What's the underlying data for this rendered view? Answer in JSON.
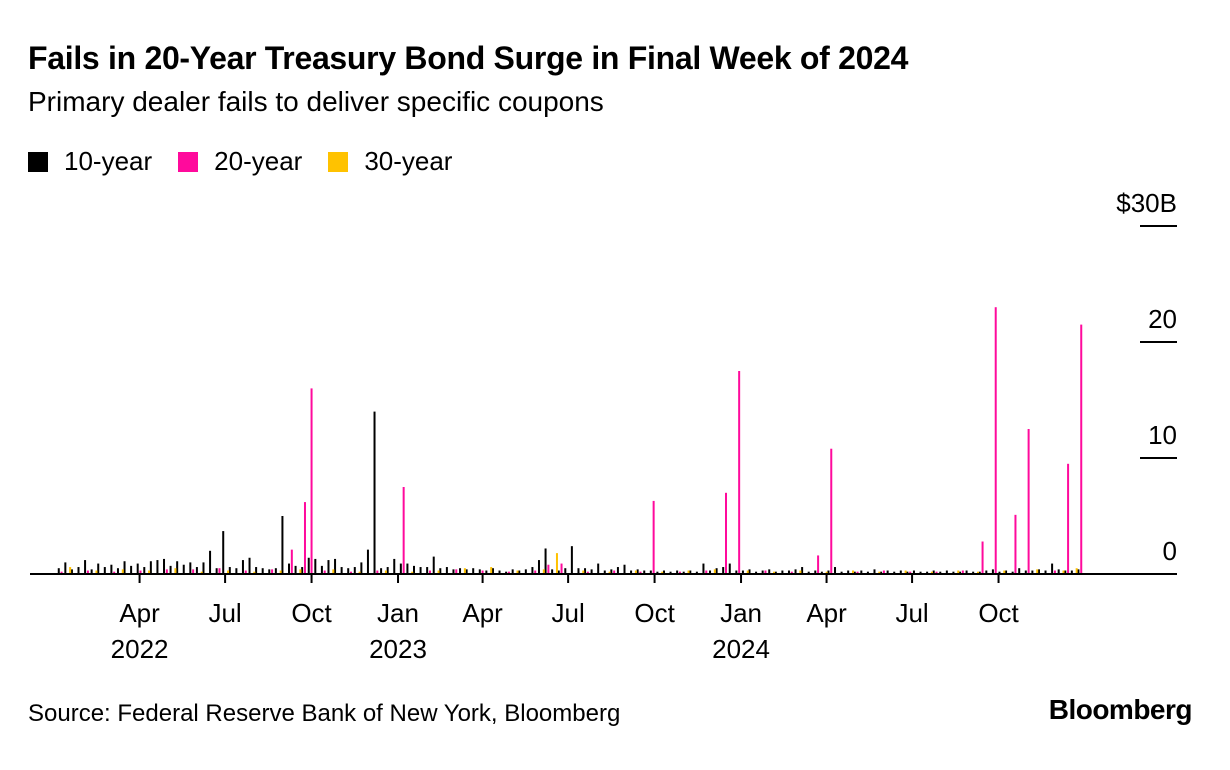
{
  "title": "Fails in 20-Year Treasury Bond Surge in Final Week of 2024",
  "subtitle": "Primary dealer fails to deliver specific coupons",
  "source": "Source: Federal Reserve Bank of New York, Bloomberg",
  "brand": "Bloomberg",
  "chart_data": {
    "type": "bar",
    "title": "Fails in 20-Year Treasury Bond Surge in Final Week of 2024",
    "subtitle": "Primary dealer fails to deliver specific coupons",
    "xlabel": "",
    "ylabel": "",
    "ylim": [
      0,
      30
    ],
    "y_ticks": [
      {
        "value": 30,
        "label": "$30B"
      },
      {
        "value": 20,
        "label": "20"
      },
      {
        "value": 10,
        "label": "10"
      },
      {
        "value": 0,
        "label": "0"
      }
    ],
    "x_ticks": [
      {
        "date": "2022-04-01",
        "label": "Apr",
        "year": "2022"
      },
      {
        "date": "2022-07-01",
        "label": "Jul",
        "year": ""
      },
      {
        "date": "2022-10-01",
        "label": "Oct",
        "year": ""
      },
      {
        "date": "2023-01-01",
        "label": "Jan",
        "year": "2023"
      },
      {
        "date": "2023-04-01",
        "label": "Apr",
        "year": ""
      },
      {
        "date": "2023-07-01",
        "label": "Jul",
        "year": ""
      },
      {
        "date": "2023-10-01",
        "label": "Oct",
        "year": ""
      },
      {
        "date": "2024-01-01",
        "label": "Jan",
        "year": "2024"
      },
      {
        "date": "2024-04-01",
        "label": "Apr",
        "year": ""
      },
      {
        "date": "2024-07-01",
        "label": "Jul",
        "year": ""
      },
      {
        "date": "2024-10-01",
        "label": "Oct",
        "year": ""
      }
    ],
    "x_start": "2022-01-01",
    "grid": false,
    "legend_position": "top-left",
    "series": [
      {
        "name": "10-year",
        "color": "#000000",
        "points": [
          [
            "2022-01-05",
            0.5
          ],
          [
            "2022-01-12",
            1.0
          ],
          [
            "2022-01-19",
            0.4
          ],
          [
            "2022-01-26",
            0.6
          ],
          [
            "2022-02-02",
            1.2
          ],
          [
            "2022-02-09",
            0.4
          ],
          [
            "2022-02-16",
            0.9
          ],
          [
            "2022-02-23",
            0.6
          ],
          [
            "2022-03-02",
            0.8
          ],
          [
            "2022-03-09",
            0.5
          ],
          [
            "2022-03-16",
            1.1
          ],
          [
            "2022-03-23",
            0.7
          ],
          [
            "2022-03-30",
            0.9
          ],
          [
            "2022-04-06",
            0.6
          ],
          [
            "2022-04-13",
            1.1
          ],
          [
            "2022-04-20",
            1.2
          ],
          [
            "2022-04-27",
            1.3
          ],
          [
            "2022-05-04",
            0.7
          ],
          [
            "2022-05-11",
            1.1
          ],
          [
            "2022-05-18",
            0.8
          ],
          [
            "2022-05-25",
            1.0
          ],
          [
            "2022-06-01",
            0.6
          ],
          [
            "2022-06-08",
            1.0
          ],
          [
            "2022-06-15",
            2.0
          ],
          [
            "2022-06-22",
            0.5
          ],
          [
            "2022-06-29",
            3.7
          ],
          [
            "2022-07-06",
            0.6
          ],
          [
            "2022-07-13",
            0.5
          ],
          [
            "2022-07-20",
            1.2
          ],
          [
            "2022-07-27",
            1.4
          ],
          [
            "2022-08-03",
            0.6
          ],
          [
            "2022-08-10",
            0.5
          ],
          [
            "2022-08-17",
            0.4
          ],
          [
            "2022-08-24",
            0.5
          ],
          [
            "2022-08-31",
            5.0
          ],
          [
            "2022-09-07",
            0.9
          ],
          [
            "2022-09-14",
            0.7
          ],
          [
            "2022-09-21",
            0.6
          ],
          [
            "2022-09-28",
            1.4
          ],
          [
            "2022-10-05",
            1.3
          ],
          [
            "2022-10-12",
            0.7
          ],
          [
            "2022-10-19",
            1.2
          ],
          [
            "2022-10-26",
            1.3
          ],
          [
            "2022-11-02",
            0.6
          ],
          [
            "2022-11-09",
            0.5
          ],
          [
            "2022-11-16",
            0.6
          ],
          [
            "2022-11-23",
            1.0
          ],
          [
            "2022-11-30",
            2.1
          ],
          [
            "2022-12-07",
            14.0
          ],
          [
            "2022-12-14",
            0.5
          ],
          [
            "2022-12-21",
            0.6
          ],
          [
            "2022-12-28",
            1.3
          ],
          [
            "2023-01-04",
            0.9
          ],
          [
            "2023-01-11",
            0.9
          ],
          [
            "2023-01-18",
            0.7
          ],
          [
            "2023-01-25",
            0.6
          ],
          [
            "2023-02-01",
            0.6
          ],
          [
            "2023-02-08",
            1.5
          ],
          [
            "2023-02-15",
            0.5
          ],
          [
            "2023-02-22",
            0.6
          ],
          [
            "2023-03-01",
            0.4
          ],
          [
            "2023-03-08",
            0.5
          ],
          [
            "2023-03-15",
            0.4
          ],
          [
            "2023-03-22",
            0.5
          ],
          [
            "2023-03-29",
            0.4
          ],
          [
            "2023-04-05",
            0.3
          ],
          [
            "2023-04-12",
            0.5
          ],
          [
            "2023-04-19",
            0.3
          ],
          [
            "2023-04-26",
            0.2
          ],
          [
            "2023-05-03",
            0.4
          ],
          [
            "2023-05-10",
            0.3
          ],
          [
            "2023-05-17",
            0.4
          ],
          [
            "2023-05-24",
            0.6
          ],
          [
            "2023-05-31",
            1.2
          ],
          [
            "2023-06-07",
            2.2
          ],
          [
            "2023-06-14",
            0.4
          ],
          [
            "2023-06-21",
            0.3
          ],
          [
            "2023-06-28",
            0.5
          ],
          [
            "2023-07-05",
            2.4
          ],
          [
            "2023-07-12",
            0.5
          ],
          [
            "2023-07-19",
            0.5
          ],
          [
            "2023-07-26",
            0.4
          ],
          [
            "2023-08-02",
            0.9
          ],
          [
            "2023-08-09",
            0.3
          ],
          [
            "2023-08-16",
            0.4
          ],
          [
            "2023-08-23",
            0.6
          ],
          [
            "2023-08-30",
            0.8
          ],
          [
            "2023-09-06",
            0.3
          ],
          [
            "2023-09-13",
            0.4
          ],
          [
            "2023-09-20",
            0.3
          ],
          [
            "2023-09-27",
            0.3
          ],
          [
            "2023-10-04",
            0.2
          ],
          [
            "2023-10-11",
            0.3
          ],
          [
            "2023-10-18",
            0.2
          ],
          [
            "2023-10-25",
            0.3
          ],
          [
            "2023-11-01",
            0.2
          ],
          [
            "2023-11-08",
            0.3
          ],
          [
            "2023-11-15",
            0.2
          ],
          [
            "2023-11-22",
            0.9
          ],
          [
            "2023-11-29",
            0.3
          ],
          [
            "2023-12-06",
            0.5
          ],
          [
            "2023-12-13",
            0.6
          ],
          [
            "2023-12-20",
            0.9
          ],
          [
            "2023-12-27",
            0.3
          ],
          [
            "2024-01-03",
            0.3
          ],
          [
            "2024-01-10",
            0.4
          ],
          [
            "2024-01-17",
            0.2
          ],
          [
            "2024-01-24",
            0.3
          ],
          [
            "2024-01-31",
            0.4
          ],
          [
            "2024-02-07",
            0.2
          ],
          [
            "2024-02-14",
            0.3
          ],
          [
            "2024-02-21",
            0.3
          ],
          [
            "2024-02-28",
            0.4
          ],
          [
            "2024-03-06",
            0.6
          ],
          [
            "2024-03-13",
            0.2
          ],
          [
            "2024-03-20",
            0.3
          ],
          [
            "2024-03-27",
            0.2
          ],
          [
            "2024-04-03",
            0.3
          ],
          [
            "2024-04-10",
            0.6
          ],
          [
            "2024-04-17",
            0.2
          ],
          [
            "2024-04-24",
            0.3
          ],
          [
            "2024-05-01",
            0.2
          ],
          [
            "2024-05-08",
            0.3
          ],
          [
            "2024-05-15",
            0.2
          ],
          [
            "2024-05-22",
            0.4
          ],
          [
            "2024-05-29",
            0.2
          ],
          [
            "2024-06-05",
            0.3
          ],
          [
            "2024-06-12",
            0.2
          ],
          [
            "2024-06-19",
            0.3
          ],
          [
            "2024-06-26",
            0.2
          ],
          [
            "2024-07-03",
            0.3
          ],
          [
            "2024-07-10",
            0.2
          ],
          [
            "2024-07-17",
            0.2
          ],
          [
            "2024-07-24",
            0.3
          ],
          [
            "2024-07-31",
            0.2
          ],
          [
            "2024-08-07",
            0.3
          ],
          [
            "2024-08-14",
            0.2
          ],
          [
            "2024-08-21",
            0.2
          ],
          [
            "2024-08-28",
            0.3
          ],
          [
            "2024-09-04",
            0.2
          ],
          [
            "2024-09-11",
            0.2
          ],
          [
            "2024-09-18",
            0.3
          ],
          [
            "2024-09-25",
            0.4
          ],
          [
            "2024-10-02",
            0.2
          ],
          [
            "2024-10-09",
            0.3
          ],
          [
            "2024-10-16",
            0.2
          ],
          [
            "2024-10-23",
            0.5
          ],
          [
            "2024-10-30",
            0.3
          ],
          [
            "2024-11-06",
            0.3
          ],
          [
            "2024-11-13",
            0.4
          ],
          [
            "2024-11-20",
            0.3
          ],
          [
            "2024-11-27",
            0.9
          ],
          [
            "2024-12-04",
            0.4
          ],
          [
            "2024-12-11",
            0.3
          ],
          [
            "2024-12-18",
            0.3
          ],
          [
            "2024-12-25",
            0.4
          ]
        ]
      },
      {
        "name": "20-year",
        "color": "#ff0a9c",
        "points": [
          [
            "2022-01-08",
            0.2
          ],
          [
            "2022-02-05",
            0.3
          ],
          [
            "2022-03-05",
            0.2
          ],
          [
            "2022-04-02",
            0.3
          ],
          [
            "2022-04-30",
            0.4
          ],
          [
            "2022-05-28",
            0.4
          ],
          [
            "2022-06-25",
            0.5
          ],
          [
            "2022-07-23",
            0.3
          ],
          [
            "2022-08-20",
            0.4
          ],
          [
            "2022-09-10",
            2.1
          ],
          [
            "2022-09-24",
            6.2
          ],
          [
            "2022-10-01",
            16.0
          ],
          [
            "2022-10-15",
            0.3
          ],
          [
            "2022-11-12",
            0.2
          ],
          [
            "2022-12-10",
            0.3
          ],
          [
            "2023-01-07",
            7.5
          ],
          [
            "2023-02-04",
            0.3
          ],
          [
            "2023-03-04",
            0.4
          ],
          [
            "2023-04-01",
            0.3
          ],
          [
            "2023-04-29",
            0.2
          ],
          [
            "2023-05-27",
            0.3
          ],
          [
            "2023-06-10",
            0.8
          ],
          [
            "2023-06-24",
            0.9
          ],
          [
            "2023-07-22",
            0.2
          ],
          [
            "2023-08-19",
            0.3
          ],
          [
            "2023-09-16",
            0.2
          ],
          [
            "2023-09-30",
            6.3
          ],
          [
            "2023-10-28",
            0.2
          ],
          [
            "2023-11-25",
            0.3
          ],
          [
            "2023-12-16",
            7.0
          ],
          [
            "2023-12-30",
            17.5
          ],
          [
            "2024-01-27",
            0.3
          ],
          [
            "2024-02-24",
            0.2
          ],
          [
            "2024-03-23",
            1.6
          ],
          [
            "2024-04-06",
            10.8
          ],
          [
            "2024-05-04",
            0.2
          ],
          [
            "2024-06-01",
            0.3
          ],
          [
            "2024-06-29",
            0.2
          ],
          [
            "2024-07-27",
            0.2
          ],
          [
            "2024-08-24",
            0.3
          ],
          [
            "2024-09-14",
            2.8
          ],
          [
            "2024-09-28",
            23.0
          ],
          [
            "2024-10-19",
            5.1
          ],
          [
            "2024-11-02",
            12.5
          ],
          [
            "2024-11-30",
            0.3
          ],
          [
            "2024-12-14",
            9.5
          ],
          [
            "2024-12-28",
            21.5
          ]
        ]
      },
      {
        "name": "30-year",
        "color": "#ffc200",
        "points": [
          [
            "2022-01-15",
            0.6
          ],
          [
            "2022-02-12",
            0.3
          ],
          [
            "2022-03-12",
            0.4
          ],
          [
            "2022-04-09",
            0.3
          ],
          [
            "2022-05-07",
            0.5
          ],
          [
            "2022-06-04",
            0.2
          ],
          [
            "2022-07-02",
            0.3
          ],
          [
            "2022-07-30",
            0.2
          ],
          [
            "2022-08-27",
            0.3
          ],
          [
            "2022-09-17",
            0.4
          ],
          [
            "2022-10-22",
            0.4
          ],
          [
            "2022-11-19",
            0.2
          ],
          [
            "2022-12-17",
            0.3
          ],
          [
            "2023-01-14",
            0.2
          ],
          [
            "2023-02-11",
            0.3
          ],
          [
            "2023-03-11",
            0.5
          ],
          [
            "2023-04-08",
            0.6
          ],
          [
            "2023-05-06",
            0.3
          ],
          [
            "2023-06-03",
            0.4
          ],
          [
            "2023-06-17",
            1.8
          ],
          [
            "2023-07-15",
            0.3
          ],
          [
            "2023-08-12",
            0.2
          ],
          [
            "2023-09-09",
            0.3
          ],
          [
            "2023-10-07",
            0.2
          ],
          [
            "2023-11-04",
            0.3
          ],
          [
            "2023-12-02",
            0.4
          ],
          [
            "2024-01-06",
            0.3
          ],
          [
            "2024-02-03",
            0.2
          ],
          [
            "2024-03-02",
            0.3
          ],
          [
            "2024-03-30",
            0.2
          ],
          [
            "2024-04-27",
            0.3
          ],
          [
            "2024-05-25",
            0.2
          ],
          [
            "2024-06-22",
            0.3
          ],
          [
            "2024-07-20",
            0.2
          ],
          [
            "2024-08-17",
            0.3
          ],
          [
            "2024-09-07",
            0.2
          ],
          [
            "2024-10-05",
            0.3
          ],
          [
            "2024-11-09",
            0.4
          ],
          [
            "2024-12-07",
            0.3
          ],
          [
            "2024-12-21",
            0.5
          ]
        ]
      }
    ]
  }
}
